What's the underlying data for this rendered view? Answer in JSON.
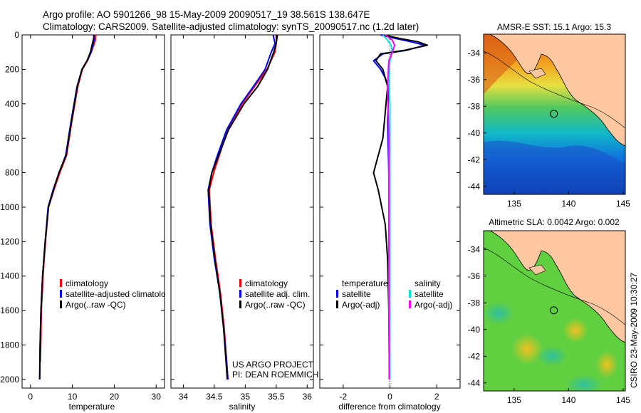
{
  "header": {
    "line1": "Argo profile: AO 5901266_98 15-May-2009 20090517_19 38.561S 138.647E",
    "line2": "Climatology: CARS2009. Satellite-adjusted climatology: synTS_20090517.nc (1.2d later)"
  },
  "colors": {
    "climatology": "#ff0000",
    "satellite": "#0000ff",
    "argo": "#000000",
    "sal_satellite": "#00e5e5",
    "sal_argo": "#ff00ff"
  },
  "chart_data": [
    {
      "type": "line",
      "name": "temperature-panel",
      "xlabel": "temperature",
      "ylabel": "",
      "xlim": [
        -2,
        32
      ],
      "ylim": [
        2050,
        0
      ],
      "xticks": [
        0,
        10,
        20,
        30
      ],
      "yticks": [
        0,
        200,
        400,
        600,
        800,
        1000,
        1200,
        1400,
        1600,
        1800,
        2000
      ],
      "series": [
        {
          "name": "climatology",
          "color": "#ff0000",
          "x": [
            15.6,
            15.5,
            15.1,
            14.5,
            13.6,
            12.4,
            11.3,
            9.9,
            8.6,
            7.0,
            5.6,
            4.3,
            3.6,
            3.0,
            2.6,
            2.45,
            2.35
          ],
          "y": [
            0,
            30,
            60,
            100,
            150,
            200,
            300,
            500,
            700,
            800,
            900,
            1000,
            1200,
            1400,
            1600,
            1800,
            1900
          ]
        },
        {
          "name": "satellite-adjusted climatology",
          "color": "#0000ff",
          "x": [
            15.1,
            15.2,
            14.9,
            14.5,
            13.5,
            12.3,
            11.1,
            9.7,
            8.4,
            6.8,
            5.4,
            4.2,
            3.5,
            2.9,
            2.5,
            2.3,
            2.2
          ],
          "y": [
            0,
            30,
            60,
            100,
            150,
            200,
            300,
            500,
            700,
            800,
            900,
            1000,
            1200,
            1400,
            1600,
            1800,
            2000
          ]
        },
        {
          "name": "Argo(..raw -QC)",
          "color": "#000000",
          "x": [
            15.2,
            15.0,
            14.7,
            14.3,
            13.5,
            12.3,
            11.2,
            9.8,
            8.5,
            6.8,
            5.5,
            4.3,
            3.5,
            2.9,
            2.5,
            2.3,
            2.2
          ],
          "y": [
            0,
            30,
            60,
            100,
            150,
            200,
            300,
            500,
            700,
            800,
            900,
            1000,
            1200,
            1400,
            1600,
            1800,
            2000
          ]
        }
      ],
      "legend": [
        "climatology",
        "satellite-adjusted climatology",
        "Argo(..raw -QC)"
      ]
    },
    {
      "type": "line",
      "name": "salinity-panel",
      "xlabel": "salinity",
      "ylabel": "",
      "xlim": [
        33.8,
        36.1
      ],
      "ylim": [
        2050,
        0
      ],
      "xticks": [
        34,
        34.5,
        35,
        35.5,
        36
      ],
      "series": [
        {
          "name": "climatology",
          "color": "#ff0000",
          "x": [
            35.5,
            35.5,
            35.48,
            35.35,
            35.15,
            34.95,
            34.72,
            34.58,
            34.49,
            34.42,
            34.45,
            34.52,
            34.6,
            34.66,
            34.7,
            34.72
          ],
          "y": [
            0,
            50,
            100,
            200,
            300,
            400,
            550,
            700,
            800,
            900,
            1100,
            1300,
            1500,
            1700,
            1900,
            2000
          ]
        },
        {
          "name": "satellite adj. clim.",
          "color": "#0000ff",
          "x": [
            35.45,
            35.48,
            35.42,
            35.32,
            35.13,
            34.93,
            34.7,
            34.55,
            34.46,
            34.4,
            34.43,
            34.5,
            34.59,
            34.65,
            34.7,
            34.72
          ],
          "y": [
            0,
            50,
            100,
            200,
            300,
            400,
            550,
            700,
            800,
            900,
            1100,
            1300,
            1500,
            1700,
            1900,
            2000
          ]
        },
        {
          "name": "Argo(..raw -QC)",
          "color": "#000000",
          "x": [
            35.52,
            35.5,
            35.46,
            35.36,
            35.2,
            34.98,
            34.73,
            34.57,
            34.46,
            34.41,
            34.44,
            34.51,
            34.59,
            34.65,
            34.69,
            34.71
          ],
          "y": [
            0,
            50,
            100,
            200,
            300,
            400,
            550,
            700,
            800,
            900,
            1100,
            1300,
            1500,
            1700,
            1900,
            2000
          ]
        }
      ],
      "legend": [
        "climatology",
        "satellite adj. clim.",
        "Argo(..raw -QC)"
      ],
      "annotation": [
        "US ARGO PROJECT",
        "PI: DEAN ROEMMICH"
      ]
    },
    {
      "type": "line",
      "name": "difference-panel",
      "xlabel": "difference from climatology",
      "ylabel": "",
      "xlim": [
        -3,
        3
      ],
      "ylim": [
        2050,
        0
      ],
      "xticks": [
        -2,
        0,
        2
      ],
      "legend_temperature": {
        "header": "temperature",
        "items": [
          "satellite",
          "Argo(-adj)"
        ]
      },
      "legend_salinity": {
        "header": "salinity",
        "items": [
          "satellite",
          "Argo(-adj)"
        ]
      },
      "series": [
        {
          "name": "temperature satellite",
          "color": "#0000ff",
          "x": [
            -0.4,
            0.2,
            0.9,
            1.5,
            0.7,
            -0.3,
            -0.7,
            -0.4,
            -0.2,
            -0.05,
            -0.1,
            -0.05,
            -0.02,
            -0.01,
            -0.01
          ],
          "y": [
            0,
            20,
            40,
            60,
            90,
            110,
            150,
            200,
            250,
            300,
            500,
            800,
            1200,
            1600,
            2000
          ]
        },
        {
          "name": "temperature Argo(-adj)",
          "color": "#000000",
          "x": [
            -0.3,
            0.4,
            1.2,
            1.6,
            0.6,
            -0.4,
            -0.6,
            -0.3,
            -0.2,
            -0.1,
            -0.3,
            -0.7,
            -0.5,
            -0.2,
            -0.1,
            -0.05,
            -0.02
          ],
          "y": [
            0,
            20,
            40,
            60,
            90,
            110,
            150,
            200,
            250,
            300,
            600,
            800,
            900,
            1100,
            1300,
            1600,
            2000
          ]
        },
        {
          "name": "salinity satellite",
          "color": "#00e5e5",
          "x": [
            -0.3,
            -0.1,
            0.05,
            0.1,
            0.0,
            -0.05,
            0.0,
            0.0,
            0.0,
            0.0
          ],
          "y": [
            0,
            30,
            60,
            100,
            150,
            250,
            400,
            800,
            1400,
            2000
          ]
        },
        {
          "name": "salinity Argo(-adj)",
          "color": "#ff00ff",
          "x": [
            -0.2,
            0.1,
            0.2,
            0.1,
            -0.05,
            -0.1,
            -0.05,
            -0.05,
            -0.05,
            -0.03
          ],
          "y": [
            0,
            30,
            60,
            100,
            150,
            300,
            600,
            900,
            1400,
            2000
          ]
        }
      ]
    },
    {
      "type": "heatmap",
      "name": "sst-map",
      "title": "AMSR-E SST: 15.1 Argo: 15.3",
      "xlim": [
        132.2,
        145.2
      ],
      "ylim": [
        -44.6,
        -32.6
      ],
      "xticks": [
        135,
        140,
        145
      ],
      "yticks": [
        -34,
        -36,
        -38,
        -40,
        -42,
        -44
      ],
      "marker": {
        "lon": 138.647,
        "lat": -38.561
      }
    },
    {
      "type": "heatmap",
      "name": "sla-map",
      "title": "Altimetric SLA: 0.0042 Argo: 0.002",
      "xlim": [
        132.2,
        145.2
      ],
      "ylim": [
        -44.6,
        -32.6
      ],
      "xticks": [
        135,
        140,
        145
      ],
      "yticks": [
        -34,
        -36,
        -38,
        -40,
        -42,
        -44
      ],
      "marker": {
        "lon": 138.647,
        "lat": -38.561
      }
    }
  ],
  "footer": {
    "credit": "CSIRO 23-May-2009 10:30:27"
  }
}
